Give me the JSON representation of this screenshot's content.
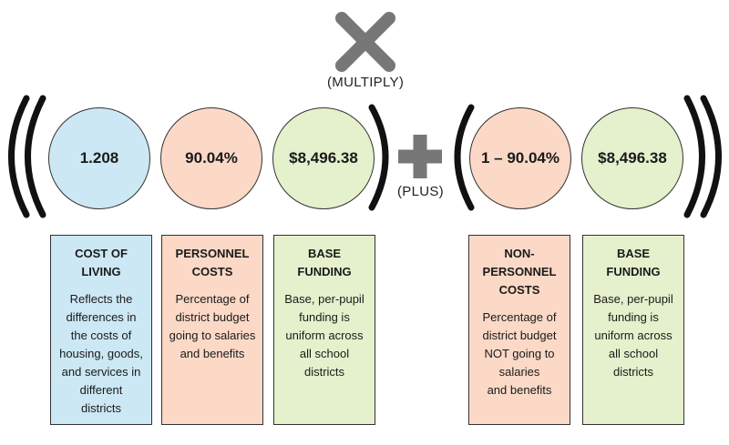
{
  "operators": {
    "multiply_label": "(MULTIPLY)",
    "plus_label": "(PLUS)"
  },
  "colors": {
    "cost_of_living": "#cce8f4",
    "personnel": "#fbd9c6",
    "base_funding": "#e5f0cc",
    "operator": "#777777",
    "bracket": "#111111"
  },
  "left_group": {
    "circles": [
      {
        "value": "1.208"
      },
      {
        "value": "90.04%"
      },
      {
        "value": "$8,496.38"
      }
    ],
    "cards": [
      {
        "title": "COST OF\nLIVING",
        "description": "Reflects the\ndifferences in\nthe costs of\nhousing, goods,\nand services in\ndifferent\ndistricts"
      },
      {
        "title": "PERSONNEL\nCOSTS",
        "description": "Percentage of\ndistrict budget\ngoing to salaries\nand benefits"
      },
      {
        "title": "BASE\nFUNDING",
        "description": "Base, per-pupil\nfunding is\nuniform across\nall school\ndistricts"
      }
    ]
  },
  "right_group": {
    "circles": [
      {
        "value": "1 – 90.04%"
      },
      {
        "value": "$8,496.38"
      }
    ],
    "cards": [
      {
        "title": "NON-PERSONNEL\nCOSTS",
        "description": "Percentage of\ndistrict budget\nNOT going to\nsalaries\nand benefits"
      },
      {
        "title": "BASE\nFUNDING",
        "description": "Base, per-pupil\nfunding is\nuniform across\nall school\ndistricts"
      }
    ]
  }
}
